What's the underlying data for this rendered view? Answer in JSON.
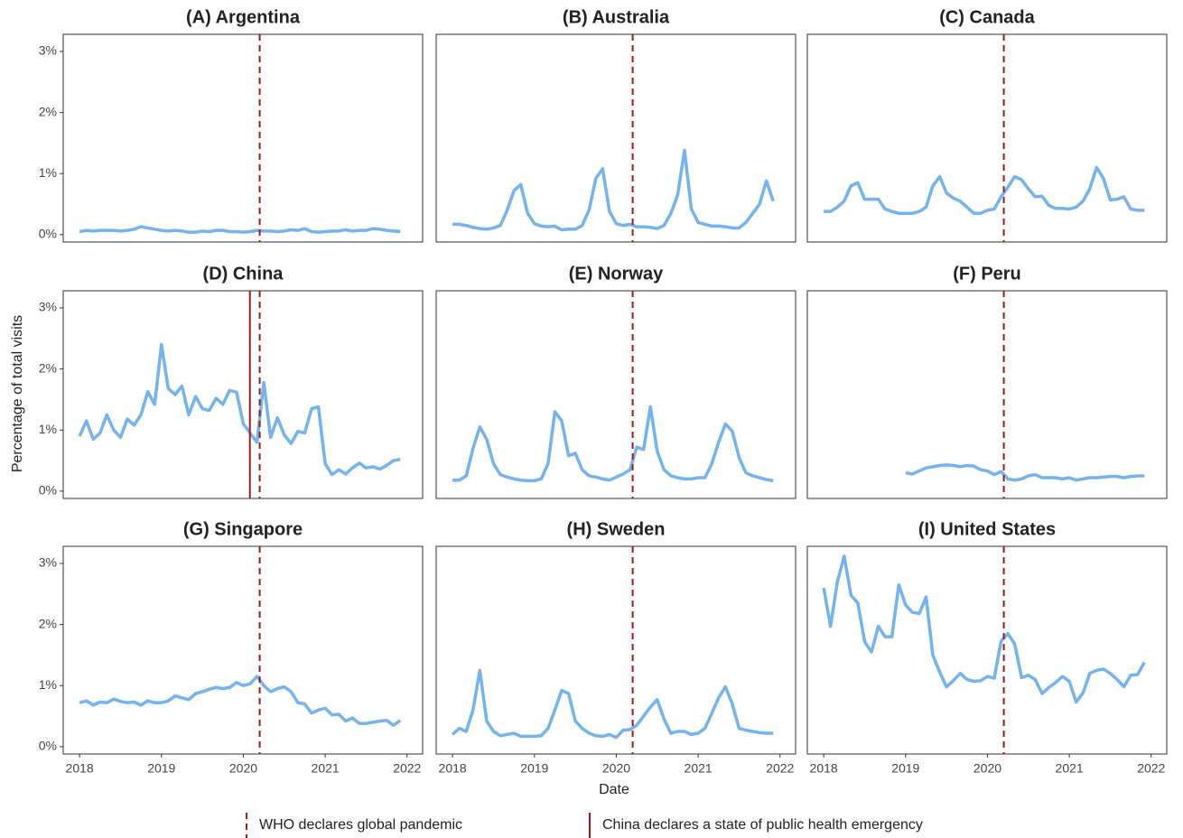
{
  "y_label": "Percentage of total visits",
  "x_label": "Date",
  "xlim": [
    2017.8,
    2022.19
  ],
  "ylim": [
    -0.12,
    3.28
  ],
  "xticks": [
    2018,
    2019,
    2020,
    2021,
    2022
  ],
  "yticks": [
    {
      "value": 0,
      "label": "0%"
    },
    {
      "value": 1,
      "label": "1%"
    },
    {
      "value": 2,
      "label": "2%"
    },
    {
      "value": 3,
      "label": "3%"
    }
  ],
  "event_color": "#9b1c1c",
  "legend": [
    {
      "label": "WHO declares global pandemic",
      "style": "dashed"
    },
    {
      "label": "China declares a state of public health emergency",
      "style": "solid"
    }
  ],
  "chart_data": [
    {
      "type": "line",
      "title": "(A) Argentina",
      "color": "#74b3f0",
      "vlines": [
        {
          "x": 2020.2,
          "style": "dashed"
        }
      ],
      "x": [
        2018,
        2018.083,
        2018.167,
        2018.25,
        2018.333,
        2018.417,
        2018.5,
        2018.583,
        2018.667,
        2018.75,
        2018.833,
        2018.917,
        2019,
        2019.083,
        2019.167,
        2019.25,
        2019.333,
        2019.417,
        2019.5,
        2019.583,
        2019.667,
        2019.75,
        2019.833,
        2019.917,
        2020,
        2020.083,
        2020.167,
        2020.25,
        2020.333,
        2020.417,
        2020.5,
        2020.583,
        2020.667,
        2020.75,
        2020.833,
        2020.917,
        2021,
        2021.083,
        2021.167,
        2021.25,
        2021.333,
        2021.417,
        2021.5,
        2021.583,
        2021.667,
        2021.75,
        2021.833,
        2021.917
      ],
      "values": [
        0.05,
        0.07,
        0.06,
        0.07,
        0.07,
        0.07,
        0.06,
        0.07,
        0.09,
        0.13,
        0.11,
        0.09,
        0.07,
        0.06,
        0.07,
        0.06,
        0.04,
        0.04,
        0.06,
        0.05,
        0.07,
        0.07,
        0.05,
        0.05,
        0.04,
        0.05,
        0.07,
        0.06,
        0.06,
        0.05,
        0.06,
        0.08,
        0.07,
        0.1,
        0.05,
        0.04,
        0.05,
        0.06,
        0.06,
        0.08,
        0.06,
        0.07,
        0.07,
        0.1,
        0.09,
        0.07,
        0.06,
        0.05
      ]
    },
    {
      "type": "line",
      "title": "(B) Australia",
      "color": "#74b3f0",
      "vlines": [
        {
          "x": 2020.2,
          "style": "dashed"
        }
      ],
      "x": [
        2018,
        2018.083,
        2018.167,
        2018.25,
        2018.333,
        2018.417,
        2018.5,
        2018.583,
        2018.667,
        2018.75,
        2018.833,
        2018.917,
        2019,
        2019.083,
        2019.167,
        2019.25,
        2019.333,
        2019.417,
        2019.5,
        2019.583,
        2019.667,
        2019.75,
        2019.833,
        2019.917,
        2020,
        2020.083,
        2020.167,
        2020.25,
        2020.333,
        2020.417,
        2020.5,
        2020.583,
        2020.667,
        2020.75,
        2020.833,
        2020.917,
        2021,
        2021.083,
        2021.167,
        2021.25,
        2021.333,
        2021.417,
        2021.5,
        2021.583,
        2021.667,
        2021.75,
        2021.833,
        2021.917
      ],
      "values": [
        0.17,
        0.17,
        0.15,
        0.12,
        0.1,
        0.09,
        0.11,
        0.15,
        0.4,
        0.72,
        0.82,
        0.35,
        0.18,
        0.14,
        0.13,
        0.14,
        0.08,
        0.09,
        0.09,
        0.15,
        0.4,
        0.92,
        1.08,
        0.38,
        0.18,
        0.15,
        0.17,
        0.13,
        0.13,
        0.12,
        0.1,
        0.15,
        0.35,
        0.65,
        1.38,
        0.42,
        0.2,
        0.17,
        0.14,
        0.14,
        0.13,
        0.11,
        0.11,
        0.2,
        0.35,
        0.5,
        0.88,
        0.55
      ]
    },
    {
      "type": "line",
      "title": "(C) Canada",
      "color": "#74b3f0",
      "vlines": [
        {
          "x": 2020.2,
          "style": "dashed"
        }
      ],
      "x": [
        2018,
        2018.083,
        2018.167,
        2018.25,
        2018.333,
        2018.417,
        2018.5,
        2018.583,
        2018.667,
        2018.75,
        2018.833,
        2018.917,
        2019,
        2019.083,
        2019.167,
        2019.25,
        2019.333,
        2019.417,
        2019.5,
        2019.583,
        2019.667,
        2019.75,
        2019.833,
        2019.917,
        2020,
        2020.083,
        2020.167,
        2020.25,
        2020.333,
        2020.417,
        2020.5,
        2020.583,
        2020.667,
        2020.75,
        2020.833,
        2020.917,
        2021,
        2021.083,
        2021.167,
        2021.25,
        2021.333,
        2021.417,
        2021.5,
        2021.583,
        2021.667,
        2021.75,
        2021.833,
        2021.917
      ],
      "values": [
        0.38,
        0.38,
        0.45,
        0.55,
        0.8,
        0.85,
        0.58,
        0.58,
        0.58,
        0.42,
        0.38,
        0.35,
        0.35,
        0.35,
        0.38,
        0.45,
        0.8,
        0.95,
        0.68,
        0.6,
        0.55,
        0.45,
        0.35,
        0.35,
        0.4,
        0.42,
        0.62,
        0.78,
        0.95,
        0.9,
        0.75,
        0.62,
        0.63,
        0.48,
        0.43,
        0.43,
        0.42,
        0.45,
        0.55,
        0.75,
        1.1,
        0.92,
        0.57,
        0.58,
        0.62,
        0.42,
        0.4,
        0.4
      ]
    },
    {
      "type": "line",
      "title": "(D) China",
      "color": "#74b3f0",
      "vlines": [
        {
          "x": 2020.2,
          "style": "dashed"
        },
        {
          "x": 2020.08,
          "style": "solid"
        }
      ],
      "x": [
        2018,
        2018.083,
        2018.167,
        2018.25,
        2018.333,
        2018.417,
        2018.5,
        2018.583,
        2018.667,
        2018.75,
        2018.833,
        2018.917,
        2019,
        2019.083,
        2019.167,
        2019.25,
        2019.333,
        2019.417,
        2019.5,
        2019.583,
        2019.667,
        2019.75,
        2019.833,
        2019.917,
        2020,
        2020.083,
        2020.167,
        2020.25,
        2020.333,
        2020.417,
        2020.5,
        2020.583,
        2020.667,
        2020.75,
        2020.833,
        2020.917,
        2021,
        2021.083,
        2021.167,
        2021.25,
        2021.333,
        2021.417,
        2021.5,
        2021.583,
        2021.667,
        2021.75,
        2021.833,
        2021.917
      ],
      "values": [
        0.9,
        1.15,
        0.85,
        0.95,
        1.25,
        1.0,
        0.88,
        1.18,
        1.08,
        1.25,
        1.63,
        1.42,
        2.4,
        1.68,
        1.58,
        1.72,
        1.25,
        1.55,
        1.35,
        1.32,
        1.52,
        1.42,
        1.65,
        1.62,
        1.1,
        0.95,
        0.8,
        1.78,
        0.88,
        1.2,
        0.92,
        0.78,
        0.98,
        0.95,
        1.35,
        1.38,
        0.45,
        0.27,
        0.35,
        0.28,
        0.38,
        0.46,
        0.38,
        0.4,
        0.36,
        0.42,
        0.5,
        0.52
      ]
    },
    {
      "type": "line",
      "title": "(E) Norway",
      "color": "#74b3f0",
      "vlines": [
        {
          "x": 2020.2,
          "style": "dashed"
        }
      ],
      "x": [
        2018,
        2018.083,
        2018.167,
        2018.25,
        2018.333,
        2018.417,
        2018.5,
        2018.583,
        2018.667,
        2018.75,
        2018.833,
        2018.917,
        2019,
        2019.083,
        2019.167,
        2019.25,
        2019.333,
        2019.417,
        2019.5,
        2019.583,
        2019.667,
        2019.75,
        2019.833,
        2019.917,
        2020,
        2020.083,
        2020.167,
        2020.25,
        2020.333,
        2020.417,
        2020.5,
        2020.583,
        2020.667,
        2020.75,
        2020.833,
        2020.917,
        2021,
        2021.083,
        2021.167,
        2021.25,
        2021.333,
        2021.417,
        2021.5,
        2021.583,
        2021.667,
        2021.75,
        2021.833,
        2021.917
      ],
      "values": [
        0.18,
        0.18,
        0.25,
        0.7,
        1.05,
        0.85,
        0.45,
        0.27,
        0.23,
        0.2,
        0.18,
        0.17,
        0.17,
        0.2,
        0.45,
        1.3,
        1.15,
        0.58,
        0.62,
        0.35,
        0.25,
        0.23,
        0.2,
        0.18,
        0.23,
        0.28,
        0.35,
        0.72,
        0.68,
        1.38,
        0.65,
        0.35,
        0.25,
        0.22,
        0.2,
        0.2,
        0.22,
        0.22,
        0.45,
        0.8,
        1.1,
        0.98,
        0.55,
        0.3,
        0.25,
        0.22,
        0.19,
        0.17
      ]
    },
    {
      "type": "line",
      "title": "(F) Peru",
      "color": "#74b3f0",
      "vlines": [
        {
          "x": 2020.2,
          "style": "dashed"
        }
      ],
      "x": [
        2018,
        2018.083,
        2018.167,
        2018.25,
        2018.333,
        2018.417,
        2018.5,
        2018.583,
        2018.667,
        2018.75,
        2018.833,
        2018.917,
        2019,
        2019.083,
        2019.167,
        2019.25,
        2019.333,
        2019.417,
        2019.5,
        2019.583,
        2019.667,
        2019.75,
        2019.833,
        2019.917,
        2020,
        2020.083,
        2020.167,
        2020.25,
        2020.333,
        2020.417,
        2020.5,
        2020.583,
        2020.667,
        2020.75,
        2020.833,
        2020.917,
        2021,
        2021.083,
        2021.167,
        2021.25,
        2021.333,
        2021.417,
        2021.5,
        2021.583,
        2021.667,
        2021.75,
        2021.833,
        2021.917
      ],
      "values": [
        null,
        null,
        null,
        null,
        null,
        null,
        null,
        null,
        null,
        null,
        null,
        null,
        0.3,
        0.28,
        0.33,
        0.38,
        0.4,
        0.42,
        0.43,
        0.42,
        0.4,
        0.42,
        0.41,
        0.35,
        0.33,
        0.27,
        0.32,
        0.2,
        0.18,
        0.2,
        0.25,
        0.27,
        0.22,
        0.22,
        0.22,
        0.2,
        0.22,
        0.18,
        0.2,
        0.22,
        0.22,
        0.23,
        0.24,
        0.24,
        0.22,
        0.24,
        0.25,
        0.25
      ]
    },
    {
      "type": "line",
      "title": "(G) Singapore",
      "color": "#74b3f0",
      "vlines": [
        {
          "x": 2020.2,
          "style": "dashed"
        }
      ],
      "x": [
        2018,
        2018.083,
        2018.167,
        2018.25,
        2018.333,
        2018.417,
        2018.5,
        2018.583,
        2018.667,
        2018.75,
        2018.833,
        2018.917,
        2019,
        2019.083,
        2019.167,
        2019.25,
        2019.333,
        2019.417,
        2019.5,
        2019.583,
        2019.667,
        2019.75,
        2019.833,
        2019.917,
        2020,
        2020.083,
        2020.167,
        2020.25,
        2020.333,
        2020.417,
        2020.5,
        2020.583,
        2020.667,
        2020.75,
        2020.833,
        2020.917,
        2021,
        2021.083,
        2021.167,
        2021.25,
        2021.333,
        2021.417,
        2021.5,
        2021.583,
        2021.667,
        2021.75,
        2021.833,
        2021.917
      ],
      "values": [
        0.72,
        0.75,
        0.68,
        0.73,
        0.72,
        0.78,
        0.74,
        0.72,
        0.73,
        0.68,
        0.75,
        0.72,
        0.72,
        0.75,
        0.83,
        0.8,
        0.77,
        0.87,
        0.9,
        0.94,
        0.97,
        0.95,
        0.97,
        1.05,
        1.0,
        1.03,
        1.15,
        1.0,
        0.9,
        0.95,
        0.98,
        0.9,
        0.72,
        0.7,
        0.55,
        0.6,
        0.63,
        0.52,
        0.53,
        0.42,
        0.47,
        0.38,
        0.38,
        0.4,
        0.42,
        0.43,
        0.35,
        0.43
      ]
    },
    {
      "type": "line",
      "title": "(H) Sweden",
      "color": "#74b3f0",
      "vlines": [
        {
          "x": 2020.2,
          "style": "dashed"
        }
      ],
      "x": [
        2018,
        2018.083,
        2018.167,
        2018.25,
        2018.333,
        2018.417,
        2018.5,
        2018.583,
        2018.667,
        2018.75,
        2018.833,
        2018.917,
        2019,
        2019.083,
        2019.167,
        2019.25,
        2019.333,
        2019.417,
        2019.5,
        2019.583,
        2019.667,
        2019.75,
        2019.833,
        2019.917,
        2020,
        2020.083,
        2020.167,
        2020.25,
        2020.333,
        2020.417,
        2020.5,
        2020.583,
        2020.667,
        2020.75,
        2020.833,
        2020.917,
        2021,
        2021.083,
        2021.167,
        2021.25,
        2021.333,
        2021.417,
        2021.5,
        2021.583,
        2021.667,
        2021.75,
        2021.833,
        2021.917
      ],
      "values": [
        0.2,
        0.3,
        0.25,
        0.6,
        1.25,
        0.42,
        0.25,
        0.18,
        0.2,
        0.22,
        0.17,
        0.17,
        0.17,
        0.18,
        0.3,
        0.6,
        0.92,
        0.87,
        0.42,
        0.3,
        0.22,
        0.18,
        0.17,
        0.2,
        0.15,
        0.27,
        0.28,
        0.35,
        0.5,
        0.65,
        0.77,
        0.45,
        0.22,
        0.25,
        0.25,
        0.2,
        0.22,
        0.3,
        0.55,
        0.8,
        0.98,
        0.7,
        0.3,
        0.27,
        0.25,
        0.23,
        0.22,
        0.22
      ]
    },
    {
      "type": "line",
      "title": "(I) United States",
      "color": "#74b3f0",
      "vlines": [
        {
          "x": 2020.2,
          "style": "dashed"
        }
      ],
      "x": [
        2018,
        2018.083,
        2018.167,
        2018.25,
        2018.333,
        2018.417,
        2018.5,
        2018.583,
        2018.667,
        2018.75,
        2018.833,
        2018.917,
        2019,
        2019.083,
        2019.167,
        2019.25,
        2019.333,
        2019.417,
        2019.5,
        2019.583,
        2019.667,
        2019.75,
        2019.833,
        2019.917,
        2020,
        2020.083,
        2020.167,
        2020.25,
        2020.333,
        2020.417,
        2020.5,
        2020.583,
        2020.667,
        2020.75,
        2020.833,
        2020.917,
        2021,
        2021.083,
        2021.167,
        2021.25,
        2021.333,
        2021.417,
        2021.5,
        2021.583,
        2021.667,
        2021.75,
        2021.833,
        2021.917
      ],
      "values": [
        2.6,
        1.97,
        2.7,
        3.12,
        2.48,
        2.35,
        1.72,
        1.55,
        1.97,
        1.8,
        1.8,
        2.65,
        2.32,
        2.2,
        2.18,
        2.45,
        1.5,
        1.22,
        0.98,
        1.08,
        1.2,
        1.1,
        1.07,
        1.08,
        1.15,
        1.12,
        1.73,
        1.85,
        1.68,
        1.13,
        1.17,
        1.1,
        0.87,
        0.97,
        1.05,
        1.15,
        1.07,
        0.73,
        0.88,
        1.2,
        1.25,
        1.27,
        1.2,
        1.1,
        0.98,
        1.17,
        1.18,
        1.38
      ]
    }
  ]
}
